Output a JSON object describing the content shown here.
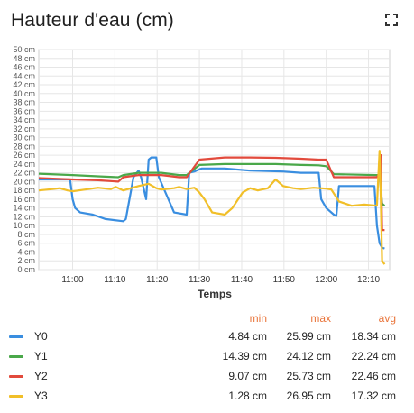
{
  "panel": {
    "title": "Hauteur d'eau (cm)",
    "expand_icon": "expand-icon"
  },
  "legend": {
    "headers": {
      "min": "min",
      "max": "max",
      "avg": "avg"
    },
    "header_color": "#e9743a",
    "rows": [
      {
        "name": "Y0",
        "color": "#3a8ee0",
        "min": "4.84 cm",
        "max": "25.99 cm",
        "avg": "18.34 cm"
      },
      {
        "name": "Y1",
        "color": "#4aa84a",
        "min": "14.39 cm",
        "max": "24.12 cm",
        "avg": "22.24 cm"
      },
      {
        "name": "Y2",
        "color": "#e24a3c",
        "min": "9.07 cm",
        "max": "25.73 cm",
        "avg": "22.46 cm"
      },
      {
        "name": "Y3",
        "color": "#f1bf29",
        "min": "1.28 cm",
        "max": "26.95 cm",
        "avg": "17.32 cm"
      }
    ]
  },
  "chart_data": {
    "type": "line",
    "xlabel": "Temps",
    "ylabel": "",
    "ylim": [
      0,
      50
    ],
    "xlim": [
      10.8667,
      12.25
    ],
    "y_ticks": [
      0,
      2,
      4,
      6,
      8,
      10,
      12,
      14,
      16,
      18,
      20,
      22,
      24,
      26,
      28,
      30,
      32,
      34,
      36,
      38,
      40,
      42,
      44,
      46,
      48,
      50
    ],
    "y_tick_unit": "cm",
    "x_ticks": [
      {
        "value": 11.0,
        "label": "11:00"
      },
      {
        "value": 11.1667,
        "label": "11:10"
      },
      {
        "value": 11.3333,
        "label": "11:20"
      },
      {
        "value": 11.5,
        "label": "11:30"
      },
      {
        "value": 11.6667,
        "label": "11:40"
      },
      {
        "value": 11.8333,
        "label": "11:50"
      },
      {
        "value": 12.0,
        "label": "12:00"
      },
      {
        "value": 12.1667,
        "label": "12:10"
      }
    ],
    "grid": true,
    "series": [
      {
        "name": "Y0",
        "color": "#3a8ee0",
        "x": [
          10.8667,
          10.95,
          10.99,
          11.0,
          11.01,
          11.03,
          11.08,
          11.13,
          11.2,
          11.21,
          11.24,
          11.26,
          11.27,
          11.29,
          11.3,
          11.31,
          11.33,
          11.34,
          11.4,
          11.45,
          11.46,
          11.48,
          11.5,
          11.51,
          11.53,
          11.6,
          11.7,
          11.83,
          11.9,
          11.97,
          11.98,
          12.0,
          12.03,
          12.04,
          12.05,
          12.1,
          12.17,
          12.19,
          12.2,
          12.21,
          12.22,
          12.23
        ],
        "y": [
          20.5,
          20.5,
          20.5,
          16,
          14,
          13,
          12.5,
          11.5,
          11,
          11.5,
          21,
          22.5,
          21,
          16,
          25,
          25.5,
          25.5,
          21,
          13,
          12.5,
          22,
          22.3,
          22.8,
          23,
          23,
          23,
          22.5,
          22.3,
          22,
          22,
          16,
          14,
          12.5,
          12.2,
          19,
          19,
          19,
          19,
          10,
          6,
          5,
          4.8
        ]
      },
      {
        "name": "Y1",
        "color": "#4aa84a",
        "x": [
          10.8667,
          11.0,
          11.1,
          11.18,
          11.2,
          11.26,
          11.35,
          11.42,
          11.45,
          11.5,
          11.6,
          11.7,
          11.8,
          11.9,
          11.97,
          12.0,
          12.03,
          12.2,
          12.21,
          12.22,
          12.23
        ],
        "y": [
          21.8,
          21.5,
          21.2,
          21,
          21.5,
          22,
          22,
          21.5,
          21.5,
          23.8,
          24,
          24,
          24,
          23.8,
          23.7,
          23.5,
          21.7,
          21.5,
          21.5,
          15,
          14.5
        ]
      },
      {
        "name": "Y2",
        "color": "#e24a3c",
        "x": [
          10.8667,
          11.0,
          11.1,
          11.18,
          11.2,
          11.26,
          11.35,
          11.42,
          11.45,
          11.5,
          11.6,
          11.7,
          11.8,
          11.9,
          11.97,
          12.0,
          12.03,
          12.17,
          12.2,
          12.21,
          12.215,
          12.22,
          12.23
        ],
        "y": [
          20.8,
          20.5,
          20.3,
          20,
          21,
          21.5,
          21.5,
          21,
          21,
          25,
          25.5,
          25.5,
          25.4,
          25.2,
          25,
          25,
          21,
          21,
          21,
          22,
          26,
          9,
          9
        ]
      },
      {
        "name": "Y3",
        "color": "#f1bf29",
        "x": [
          10.8667,
          10.92,
          10.95,
          10.98,
          11.0,
          11.05,
          11.1,
          11.15,
          11.17,
          11.2,
          11.23,
          11.26,
          11.3,
          11.33,
          11.35,
          11.4,
          11.42,
          11.45,
          11.48,
          11.5,
          11.52,
          11.55,
          11.6,
          11.63,
          11.67,
          11.7,
          11.73,
          11.77,
          11.8,
          11.83,
          11.87,
          11.9,
          11.95,
          12.0,
          12.02,
          12.05,
          12.1,
          12.15,
          12.2,
          12.21,
          12.215,
          12.22,
          12.23
        ],
        "y": [
          18,
          18.3,
          18.5,
          18,
          17.8,
          18.2,
          18.6,
          18.3,
          18.8,
          18,
          18.5,
          19,
          19.5,
          18.5,
          18.2,
          18.5,
          18.8,
          18.3,
          18.6,
          17.5,
          16,
          13,
          12.5,
          14,
          17.5,
          18.5,
          18,
          18.5,
          20.5,
          19,
          18.5,
          18.3,
          18.6,
          18.4,
          18.2,
          15.5,
          14.5,
          14.8,
          14.5,
          27,
          16,
          2,
          1.2
        ]
      }
    ]
  }
}
